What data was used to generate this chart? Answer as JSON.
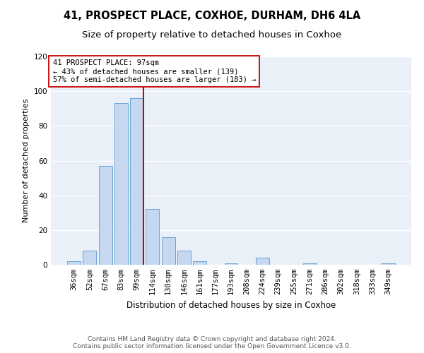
{
  "title": "41, PROSPECT PLACE, COXHOE, DURHAM, DH6 4LA",
  "subtitle": "Size of property relative to detached houses in Coxhoe",
  "xlabel": "Distribution of detached houses by size in Coxhoe",
  "ylabel": "Number of detached properties",
  "bar_labels": [
    "36sqm",
    "52sqm",
    "67sqm",
    "83sqm",
    "99sqm",
    "114sqm",
    "130sqm",
    "146sqm",
    "161sqm",
    "177sqm",
    "193sqm",
    "208sqm",
    "224sqm",
    "239sqm",
    "255sqm",
    "271sqm",
    "286sqm",
    "302sqm",
    "318sqm",
    "333sqm",
    "349sqm"
  ],
  "bar_values": [
    2,
    8,
    57,
    93,
    96,
    32,
    16,
    8,
    2,
    0,
    1,
    0,
    4,
    0,
    0,
    1,
    0,
    0,
    0,
    0,
    1
  ],
  "bar_color": "#c5d8f0",
  "bar_edge_color": "#6ba3d6",
  "ylim": [
    0,
    120
  ],
  "yticks": [
    0,
    20,
    40,
    60,
    80,
    100,
    120
  ],
  "property_line_color": "#cc0000",
  "annotation_title": "41 PROSPECT PLACE: 97sqm",
  "annotation_line1": "← 43% of detached houses are smaller (139)",
  "annotation_line2": "57% of semi-detached houses are larger (183) →",
  "annotation_box_color": "#ffffff",
  "annotation_box_edge_color": "#cc0000",
  "footer_line1": "Contains HM Land Registry data © Crown copyright and database right 2024.",
  "footer_line2": "Contains public sector information licensed under the Open Government Licence v3.0.",
  "plot_bg_color": "#eaf0f8",
  "title_fontsize": 10.5,
  "subtitle_fontsize": 9.5,
  "xlabel_fontsize": 8.5,
  "ylabel_fontsize": 8,
  "tick_fontsize": 7.5,
  "footer_fontsize": 6.5
}
